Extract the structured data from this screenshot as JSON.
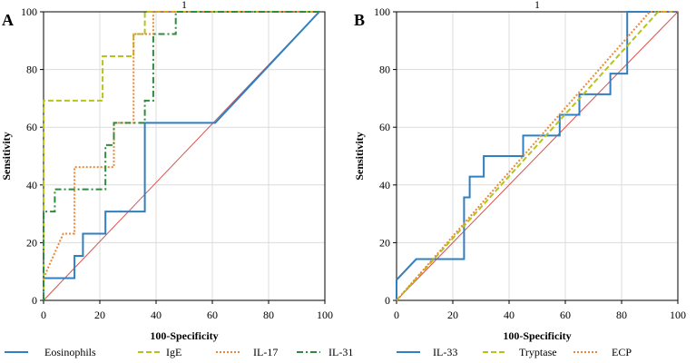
{
  "chart_data": [
    {
      "type": "line",
      "panel": "A",
      "title": "1",
      "xlabel": "100-Specificity",
      "ylabel": "Sensitivity",
      "xlim": [
        0,
        100
      ],
      "ylim": [
        0,
        100
      ],
      "xticks": [
        0,
        20,
        40,
        60,
        80,
        100
      ],
      "yticks": [
        0,
        20,
        40,
        60,
        80,
        100
      ],
      "grid": true,
      "diagonal": {
        "x": [
          0,
          98
        ],
        "y": [
          0,
          100
        ],
        "color": "#d9534f"
      },
      "series": [
        {
          "name": "Eosinophils",
          "color": "#2f7fc1",
          "dash": "solid",
          "x": [
            0,
            0,
            11,
            11,
            14,
            14,
            18,
            18,
            22,
            22,
            25,
            25,
            36,
            36,
            61,
            98
          ],
          "y": [
            0,
            7.7,
            7.7,
            15.4,
            15.4,
            23.1,
            23.1,
            23.1,
            23.1,
            30.8,
            30.8,
            30.8,
            30.8,
            61.5,
            61.5,
            100
          ]
        },
        {
          "name": "IgE",
          "color": "#b5c41a",
          "dash": "dash",
          "x": [
            0,
            0,
            21,
            21,
            32,
            32,
            36,
            36,
            98
          ],
          "y": [
            0,
            69.2,
            69.2,
            84.6,
            84.6,
            92.3,
            92.3,
            100,
            100
          ]
        },
        {
          "name": "IL-17",
          "color": "#e8893a",
          "dash": "dot",
          "x": [
            0,
            7,
            11,
            11,
            21,
            21,
            25,
            25,
            32,
            32,
            36,
            36,
            39,
            39,
            98
          ],
          "y": [
            7.7,
            23.1,
            23.1,
            46.2,
            46.2,
            46.2,
            46.2,
            61.5,
            61.5,
            92.3,
            92.3,
            92.3,
            92.3,
            100,
            100
          ]
        },
        {
          "name": "IL-31",
          "color": "#2e8b3d",
          "dash": "dashdot",
          "x": [
            0,
            0,
            4,
            4,
            22,
            22,
            25,
            25,
            36,
            36,
            39,
            39,
            47,
            47,
            98
          ],
          "y": [
            0,
            30.8,
            30.8,
            38.5,
            38.5,
            53.8,
            53.8,
            61.5,
            61.5,
            69.2,
            69.2,
            92.3,
            92.3,
            100,
            100
          ]
        }
      ]
    },
    {
      "type": "line",
      "panel": "B",
      "title": "1",
      "xlabel": "100-Specificity",
      "ylabel": "Sensitivity",
      "xlim": [
        0,
        100
      ],
      "ylim": [
        0,
        100
      ],
      "xticks": [
        0,
        20,
        40,
        60,
        80,
        100
      ],
      "yticks": [
        0,
        20,
        40,
        60,
        80,
        100
      ],
      "grid": true,
      "diagonal": {
        "x": [
          0,
          100
        ],
        "y": [
          0,
          100
        ],
        "color": "#d9534f"
      },
      "series": [
        {
          "name": "IL-33",
          "color": "#2f7fc1",
          "dash": "solid",
          "x": [
            0,
            0,
            7,
            7,
            24,
            24,
            26,
            26,
            28,
            28,
            31,
            31,
            34,
            34,
            45,
            45,
            58,
            58,
            65,
            65,
            72,
            72,
            76,
            76,
            82,
            82,
            90,
            98
          ],
          "y": [
            0,
            7.1,
            14.3,
            14.3,
            14.3,
            35.7,
            35.7,
            42.9,
            42.9,
            42.9,
            42.9,
            50,
            50,
            50,
            50,
            57.1,
            57.1,
            64.3,
            64.3,
            71.4,
            71.4,
            71.4,
            71.4,
            78.6,
            78.6,
            100,
            100,
            100
          ]
        },
        {
          "name": "Tryptase",
          "color": "#b5c41a",
          "dash": "dash",
          "x": [
            0,
            93,
            98
          ],
          "y": [
            0,
            100,
            100
          ]
        },
        {
          "name": "ECP",
          "color": "#e8893a",
          "dash": "dot",
          "x": [
            0,
            90,
            98
          ],
          "y": [
            0,
            100,
            100
          ]
        }
      ]
    }
  ]
}
